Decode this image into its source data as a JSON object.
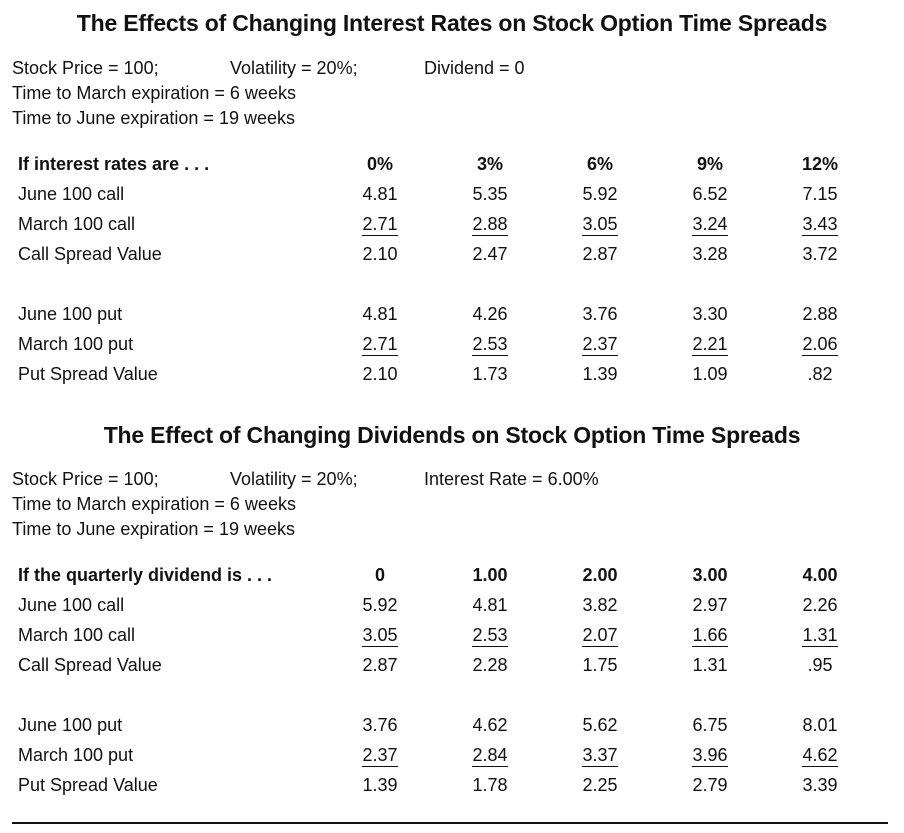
{
  "section1": {
    "title": "The Effects of Changing Interest Rates on Stock Option Time Spreads",
    "params": {
      "stock_price": "Stock Price = 100;",
      "volatility": "Volatility = 20%;",
      "third": "Dividend = 0",
      "march_time": "Time to March expiration = 6 weeks",
      "june_time": "Time to June expiration = 19 weeks"
    },
    "header": {
      "label": "If interest rates are . . .",
      "cols": [
        "0%",
        "3%",
        "6%",
        "9%",
        "12%"
      ]
    },
    "rows": [
      {
        "label": "June 100 call",
        "values": [
          "4.81",
          "5.35",
          "5.92",
          "6.52",
          "7.15"
        ]
      },
      {
        "label": "March 100 call",
        "values": [
          "2.71",
          "2.88",
          "3.05",
          "3.24",
          "3.43"
        ]
      },
      {
        "label": "Call Spread Value",
        "values": [
          "2.10",
          "2.47",
          "2.87",
          "3.28",
          "3.72"
        ]
      },
      {
        "label": "June 100 put",
        "values": [
          "4.81",
          "4.26",
          "3.76",
          "3.30",
          "2.88"
        ]
      },
      {
        "label": "March 100 put",
        "values": [
          "2.71",
          "2.53",
          "2.37",
          "2.21",
          "2.06"
        ]
      },
      {
        "label": "Put Spread Value",
        "values": [
          "2.10",
          "1.73",
          "1.39",
          "1.09",
          ".82"
        ]
      }
    ]
  },
  "section2": {
    "title": "The Effect of Changing Dividends on Stock Option Time Spreads",
    "params": {
      "stock_price": "Stock Price = 100;",
      "volatility": "Volatility = 20%;",
      "third": "Interest Rate = 6.00%",
      "march_time": "Time to March expiration = 6 weeks",
      "june_time": "Time to June expiration = 19 weeks"
    },
    "header": {
      "label": "If the quarterly dividend is . . .",
      "cols": [
        "0",
        "1.00",
        "2.00",
        "3.00",
        "4.00"
      ]
    },
    "rows": [
      {
        "label": "June 100 call",
        "values": [
          "5.92",
          "4.81",
          "3.82",
          "2.97",
          "2.26"
        ]
      },
      {
        "label": "March 100 call",
        "values": [
          "3.05",
          "2.53",
          "2.07",
          "1.66",
          "1.31"
        ]
      },
      {
        "label": "Call Spread Value",
        "values": [
          "2.87",
          "2.28",
          "1.75",
          "1.31",
          ".95"
        ]
      },
      {
        "label": "June 100 put",
        "values": [
          "3.76",
          "4.62",
          "5.62",
          "6.75",
          "8.01"
        ]
      },
      {
        "label": "March 100 put",
        "values": [
          "2.37",
          "2.84",
          "3.37",
          "3.96",
          "4.62"
        ]
      },
      {
        "label": "Put Spread Value",
        "values": [
          "1.39",
          "1.78",
          "2.25",
          "2.79",
          "3.39"
        ]
      }
    ]
  }
}
